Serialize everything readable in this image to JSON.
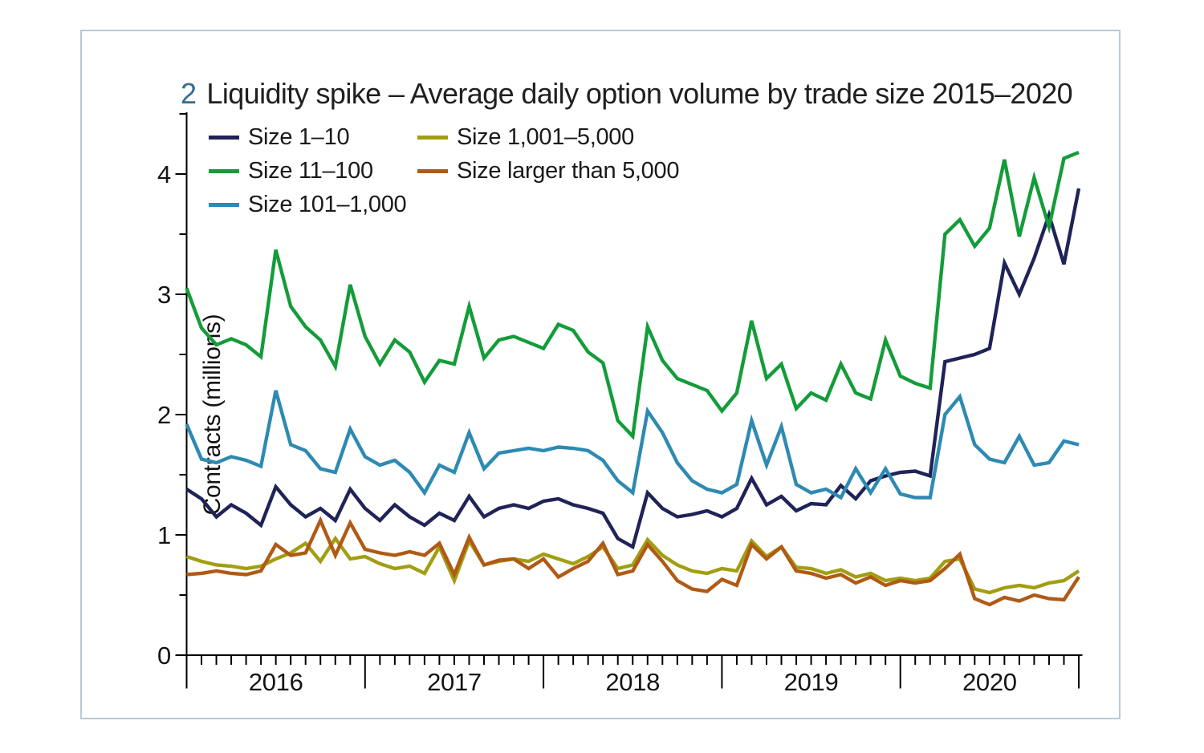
{
  "figure": {
    "border_color": "#b9cad7",
    "title_number": "2",
    "title_number_color": "#336e91",
    "title_text": "Liquidity spike – Average daily option volume by trade size 2015–2020"
  },
  "chart_data": {
    "type": "line",
    "figure_number": "2",
    "title": "Liquidity spike – Average daily option volume by trade size 2015–2020",
    "ylabel": "Contracts (millions)",
    "xlabel": "",
    "x_unit": "month",
    "x_first_month": "2015-07",
    "x_last_month": "2020-07",
    "points_per_series": 61,
    "x_tick_years": [
      "2016",
      "2017",
      "2018",
      "2019",
      "2020"
    ],
    "y_ticks": [
      0,
      1,
      2,
      3,
      4
    ],
    "y_minor_tick_step": 0.5,
    "ylim": [
      0,
      4.5
    ],
    "grid": false,
    "legend_position": "top-left, two columns",
    "axis_color": "#000000",
    "series": [
      {
        "name": "Size 1–10",
        "color": "#1f2357",
        "values": [
          1.38,
          1.3,
          1.15,
          1.25,
          1.18,
          1.08,
          1.4,
          1.25,
          1.15,
          1.22,
          1.12,
          1.38,
          1.22,
          1.12,
          1.25,
          1.15,
          1.08,
          1.18,
          1.12,
          1.32,
          1.15,
          1.22,
          1.25,
          1.22,
          1.28,
          1.3,
          1.25,
          1.22,
          1.18,
          0.97,
          0.9,
          1.35,
          1.22,
          1.15,
          1.17,
          1.2,
          1.15,
          1.22,
          1.47,
          1.25,
          1.32,
          1.2,
          1.26,
          1.25,
          1.41,
          1.3,
          1.45,
          1.49,
          1.52,
          1.53,
          1.49,
          2.44,
          2.47,
          2.5,
          2.55,
          3.26,
          3.0,
          3.3,
          3.66,
          3.25,
          3.88
        ]
      },
      {
        "name": "Size 11–100",
        "color": "#149c3a",
        "values": [
          3.05,
          2.72,
          2.58,
          2.63,
          2.58,
          2.48,
          3.37,
          2.9,
          2.73,
          2.62,
          2.4,
          3.08,
          2.65,
          2.42,
          2.62,
          2.52,
          2.27,
          2.45,
          2.42,
          2.9,
          2.47,
          2.62,
          2.65,
          2.6,
          2.55,
          2.75,
          2.7,
          2.52,
          2.43,
          1.95,
          1.82,
          2.73,
          2.45,
          2.3,
          2.25,
          2.2,
          2.03,
          2.18,
          2.78,
          2.3,
          2.42,
          2.05,
          2.18,
          2.12,
          2.42,
          2.18,
          2.13,
          2.62,
          2.32,
          2.26,
          2.22,
          3.5,
          3.62,
          3.4,
          3.55,
          4.12,
          3.48,
          3.97,
          3.56,
          4.13,
          4.18
        ]
      },
      {
        "name": "Size 101–1,000",
        "color": "#2e8ab2",
        "values": [
          1.92,
          1.63,
          1.6,
          1.65,
          1.62,
          1.57,
          2.2,
          1.75,
          1.7,
          1.55,
          1.52,
          1.88,
          1.65,
          1.58,
          1.62,
          1.52,
          1.35,
          1.58,
          1.52,
          1.85,
          1.55,
          1.68,
          1.7,
          1.72,
          1.7,
          1.73,
          1.72,
          1.7,
          1.62,
          1.45,
          1.35,
          2.03,
          1.85,
          1.6,
          1.45,
          1.38,
          1.35,
          1.42,
          1.95,
          1.58,
          1.9,
          1.42,
          1.35,
          1.38,
          1.31,
          1.55,
          1.35,
          1.55,
          1.34,
          1.31,
          1.31,
          2.0,
          2.15,
          1.75,
          1.63,
          1.6,
          1.82,
          1.58,
          1.6,
          1.78,
          1.75
        ]
      },
      {
        "name": "Size 1,001–5,000",
        "color": "#a29e11",
        "values": [
          0.82,
          0.78,
          0.75,
          0.74,
          0.72,
          0.74,
          0.8,
          0.85,
          0.93,
          0.78,
          0.97,
          0.8,
          0.82,
          0.76,
          0.72,
          0.74,
          0.68,
          0.9,
          0.62,
          0.95,
          0.75,
          0.78,
          0.8,
          0.78,
          0.84,
          0.8,
          0.76,
          0.82,
          0.9,
          0.72,
          0.75,
          0.96,
          0.83,
          0.75,
          0.7,
          0.68,
          0.72,
          0.7,
          0.95,
          0.82,
          0.9,
          0.73,
          0.72,
          0.68,
          0.71,
          0.65,
          0.68,
          0.62,
          0.64,
          0.62,
          0.64,
          0.78,
          0.8,
          0.55,
          0.52,
          0.56,
          0.58,
          0.56,
          0.6,
          0.62,
          0.7
        ]
      },
      {
        "name": "Size larger than 5,000",
        "color": "#b05a15",
        "values": [
          0.67,
          0.68,
          0.7,
          0.68,
          0.67,
          0.7,
          0.92,
          0.83,
          0.85,
          1.12,
          0.83,
          1.1,
          0.88,
          0.85,
          0.83,
          0.86,
          0.83,
          0.93,
          0.67,
          0.98,
          0.75,
          0.79,
          0.8,
          0.72,
          0.8,
          0.65,
          0.72,
          0.78,
          0.93,
          0.67,
          0.7,
          0.92,
          0.78,
          0.62,
          0.55,
          0.53,
          0.63,
          0.58,
          0.92,
          0.8,
          0.9,
          0.7,
          0.68,
          0.64,
          0.67,
          0.6,
          0.65,
          0.58,
          0.62,
          0.6,
          0.62,
          0.72,
          0.84,
          0.47,
          0.42,
          0.48,
          0.45,
          0.5,
          0.47,
          0.46,
          0.65
        ]
      }
    ]
  }
}
